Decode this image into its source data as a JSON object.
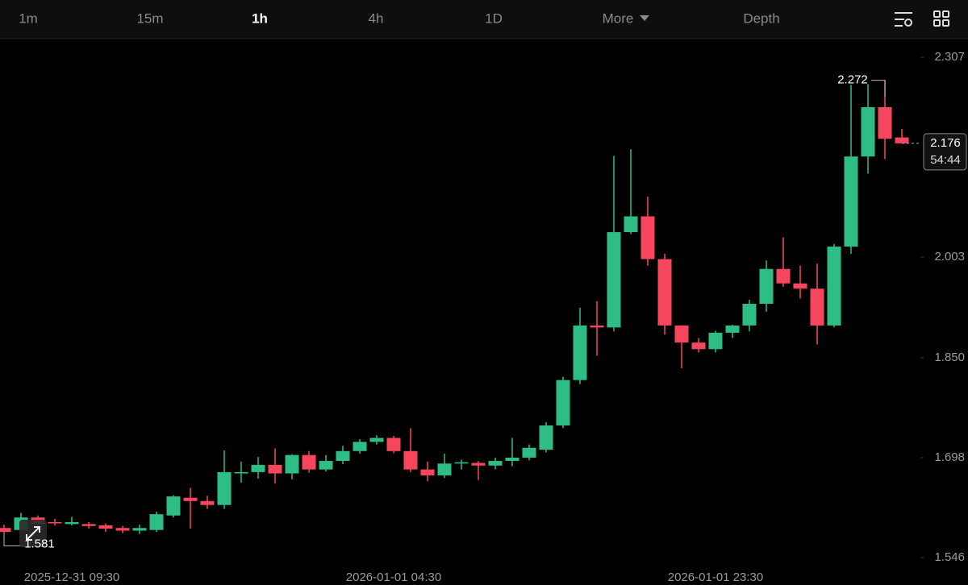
{
  "toolbar": {
    "intervals": [
      "1m",
      "15m",
      "1h",
      "4h",
      "1D"
    ],
    "active": 2,
    "more": "More",
    "depth": "Depth"
  },
  "chart_data": {
    "type": "candlestick",
    "up_color": "#2ebd85",
    "down_color": "#f6465d",
    "categories": [
      null,
      null,
      null,
      null,
      "2025-12-31 09:30",
      null,
      null,
      null,
      null,
      null,
      null,
      null,
      null,
      null,
      null,
      null,
      null,
      null,
      null,
      null,
      null,
      null,
      null,
      "2026-01-01 04:30",
      null,
      null,
      null,
      null,
      null,
      null,
      null,
      null,
      null,
      null,
      null,
      null,
      null,
      null,
      null,
      null,
      null,
      null,
      "2026-01-01 23:30",
      null,
      null,
      null,
      null,
      null,
      null,
      null,
      null,
      null,
      null,
      null
    ],
    "open": [
      1.591,
      1.588,
      1.607,
      1.6,
      1.597,
      1.597,
      1.595,
      1.591,
      1.587,
      1.588,
      1.61,
      1.637,
      1.632,
      1.626,
      1.674,
      1.676,
      1.687,
      1.674,
      1.702,
      1.68,
      1.693,
      1.708,
      1.722,
      1.728,
      1.708,
      1.68,
      1.671,
      1.689,
      1.69,
      1.686,
      1.693,
      1.698,
      1.71,
      1.747,
      1.816,
      1.899,
      1.896,
      2.041,
      2.065,
      2.0,
      1.899,
      1.873,
      1.863,
      1.888,
      1.899,
      1.932,
      1.985,
      1.963,
      1.955,
      1.899,
      2.019,
      2.156,
      2.231,
      2.185
    ],
    "high": [
      1.596,
      1.614,
      1.61,
      1.605,
      1.608,
      1.6,
      1.598,
      1.594,
      1.596,
      1.616,
      1.641,
      1.652,
      1.64,
      1.709,
      1.692,
      1.699,
      1.712,
      1.703,
      1.708,
      1.702,
      1.716,
      1.726,
      1.732,
      1.731,
      1.743,
      1.692,
      1.704,
      1.695,
      1.693,
      1.698,
      1.728,
      1.718,
      1.752,
      1.821,
      1.926,
      1.936,
      2.157,
      2.167,
      2.095,
      2.008,
      1.899,
      1.88,
      1.891,
      1.9,
      1.938,
      1.998,
      2.033,
      1.99,
      1.993,
      2.023,
      2.265,
      2.266,
      2.272,
      2.198
    ],
    "low": [
      1.581,
      1.586,
      1.592,
      1.595,
      1.595,
      1.59,
      1.585,
      1.583,
      1.582,
      1.585,
      1.607,
      1.59,
      1.62,
      1.62,
      1.66,
      1.666,
      1.659,
      1.665,
      1.675,
      1.677,
      1.688,
      1.704,
      1.718,
      1.705,
      1.676,
      1.662,
      1.667,
      1.68,
      1.664,
      1.68,
      1.685,
      1.694,
      1.706,
      1.743,
      1.81,
      1.853,
      1.89,
      2.038,
      1.99,
      1.885,
      1.834,
      1.858,
      1.858,
      1.88,
      1.89,
      1.92,
      1.958,
      1.94,
      1.87,
      1.896,
      2.008,
      2.13,
      2.152,
      2.176
    ],
    "close": [
      1.585,
      1.607,
      1.597,
      1.598,
      1.6,
      1.594,
      1.59,
      1.587,
      1.591,
      1.612,
      1.639,
      1.632,
      1.626,
      1.676,
      1.676,
      1.687,
      1.674,
      1.702,
      1.68,
      1.693,
      1.708,
      1.722,
      1.728,
      1.708,
      1.68,
      1.671,
      1.689,
      1.691,
      1.686,
      1.693,
      1.698,
      1.713,
      1.747,
      1.816,
      1.899,
      1.896,
      2.041,
      2.065,
      2.0,
      1.899,
      1.873,
      1.863,
      1.888,
      1.899,
      1.932,
      1.985,
      1.963,
      1.955,
      1.899,
      2.019,
      2.156,
      2.231,
      2.183,
      2.176
    ],
    "ylim": [
      1.5043,
      2.3352
    ],
    "yticks": [
      1.546,
      1.698,
      {
        "value": 1.85,
        "label": "1.850"
      },
      2.003,
      2.307
    ],
    "high_marker": 2.272,
    "low_marker": 1.581,
    "current_price": 2.176,
    "countdown": "54:44"
  }
}
